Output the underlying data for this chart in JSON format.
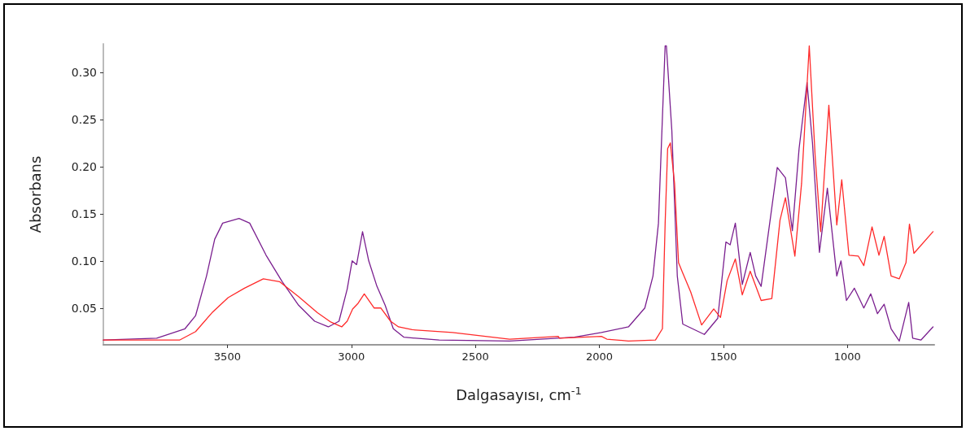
{
  "chart_data": {
    "type": "line",
    "xlabel": "Dalgasayısı, cm$^{-1}$",
    "ylabel": "Absorbans",
    "xlim": [
      4000,
      650
    ],
    "xticks": [
      3500,
      3000,
      2500,
      2000,
      1500,
      1000
    ],
    "ylim": [
      0.011,
      0.33
    ],
    "yticks": [
      0.05,
      {
        "value": 0.1,
        "label": "0.10"
      },
      0.15,
      {
        "value": 0.2,
        "label": "0.20"
      },
      0.25,
      {
        "value": 0.3,
        "label": "0.30"
      }
    ],
    "grid": false,
    "marker": "none",
    "line_style": "solid",
    "series": [
      {
        "color": "#7a1f8f",
        "x": [
          4000,
          3785,
          3671,
          3628,
          3584,
          3551,
          3519,
          3453,
          3410,
          3344,
          3279,
          3213,
          3148,
          3093,
          3050,
          3017,
          2997,
          2979,
          2955,
          2930,
          2897,
          2864,
          2831,
          2788,
          2646,
          2362,
          2101,
          1992,
          1883,
          1817,
          1784,
          1762,
          1746,
          1735,
          1730,
          1708,
          1686,
          1664,
          1577,
          1523,
          1490,
          1473,
          1452,
          1424,
          1392,
          1370,
          1348,
          1283,
          1250,
          1222,
          1195,
          1163,
          1141,
          1113,
          1081,
          1043,
          1026,
          1004,
          972,
          934,
          906,
          879,
          852,
          824,
          791,
          753,
          737,
          704,
          655
        ],
        "values": [
          0.016,
          0.018,
          0.028,
          0.042,
          0.084,
          0.123,
          0.14,
          0.145,
          0.14,
          0.106,
          0.078,
          0.053,
          0.036,
          0.03,
          0.036,
          0.07,
          0.1,
          0.096,
          0.131,
          0.1,
          0.073,
          0.053,
          0.028,
          0.019,
          0.016,
          0.015,
          0.019,
          0.024,
          0.03,
          0.05,
          0.084,
          0.14,
          0.252,
          0.328,
          0.328,
          0.238,
          0.084,
          0.033,
          0.022,
          0.039,
          0.12,
          0.117,
          0.14,
          0.075,
          0.109,
          0.084,
          0.073,
          0.199,
          0.188,
          0.132,
          0.219,
          0.289,
          0.225,
          0.109,
          0.177,
          0.084,
          0.1,
          0.058,
          0.071,
          0.05,
          0.065,
          0.044,
          0.054,
          0.028,
          0.015,
          0.056,
          0.018,
          0.016,
          0.03
        ]
      },
      {
        "color": "#ff2a2a",
        "x": [
          4000,
          3693,
          3628,
          3562,
          3497,
          3431,
          3355,
          3290,
          3213,
          3137,
          3082,
          3039,
          3017,
          2995,
          2973,
          2948,
          2908,
          2881,
          2842,
          2810,
          2755,
          2592,
          2362,
          2166,
          2161,
          1992,
          1970,
          1883,
          1774,
          1746,
          1735,
          1725,
          1714,
          1697,
          1681,
          1664,
          1632,
          1588,
          1539,
          1512,
          1485,
          1452,
          1424,
          1392,
          1348,
          1305,
          1272,
          1250,
          1212,
          1185,
          1154,
          1130,
          1108,
          1075,
          1043,
          1023,
          994,
          956,
          934,
          901,
          873,
          852,
          824,
          791,
          764,
          750,
          732,
          655
        ],
        "values": [
          0.016,
          0.016,
          0.025,
          0.045,
          0.061,
          0.071,
          0.081,
          0.078,
          0.062,
          0.045,
          0.035,
          0.03,
          0.036,
          0.049,
          0.055,
          0.065,
          0.05,
          0.05,
          0.036,
          0.03,
          0.027,
          0.024,
          0.017,
          0.02,
          0.018,
          0.02,
          0.017,
          0.015,
          0.016,
          0.028,
          0.14,
          0.219,
          0.225,
          0.182,
          0.098,
          0.087,
          0.067,
          0.032,
          0.049,
          0.04,
          0.079,
          0.102,
          0.064,
          0.089,
          0.058,
          0.06,
          0.143,
          0.167,
          0.105,
          0.182,
          0.328,
          0.21,
          0.131,
          0.265,
          0.138,
          0.186,
          0.106,
          0.105,
          0.095,
          0.136,
          0.106,
          0.126,
          0.084,
          0.081,
          0.098,
          0.139,
          0.108,
          0.131
        ]
      }
    ]
  }
}
